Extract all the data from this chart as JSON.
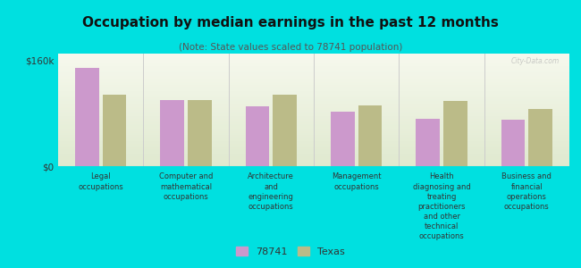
{
  "title": "Occupation by median earnings in the past 12 months",
  "subtitle": "(Note: State values scaled to 78741 population)",
  "categories": [
    "Legal\noccupations",
    "Computer and\nmathematical\noccupations",
    "Architecture\nand\nengineering\noccupations",
    "Management\noccupations",
    "Health\ndiagnosing and\ntreating\npractitioners\nand other\ntechnical\noccupations",
    "Business and\nfinancial\noperations\noccupations"
  ],
  "values_78741": [
    148000,
    100000,
    90000,
    82000,
    72000,
    70000
  ],
  "values_texas": [
    108000,
    100000,
    108000,
    92000,
    98000,
    86000
  ],
  "color_78741": "#cc99cc",
  "color_texas": "#bbbb88",
  "background_chart_top": "#e8eed8",
  "background_chart_bottom": "#f2f5e4",
  "background_fig": "#00e0e0",
  "ylim": [
    0,
    170000
  ],
  "yticks": [
    0,
    160000
  ],
  "ytick_labels": [
    "$0",
    "$160k"
  ],
  "legend_label_78741": "78741",
  "legend_label_texas": "Texas",
  "watermark": "City-Data.com"
}
